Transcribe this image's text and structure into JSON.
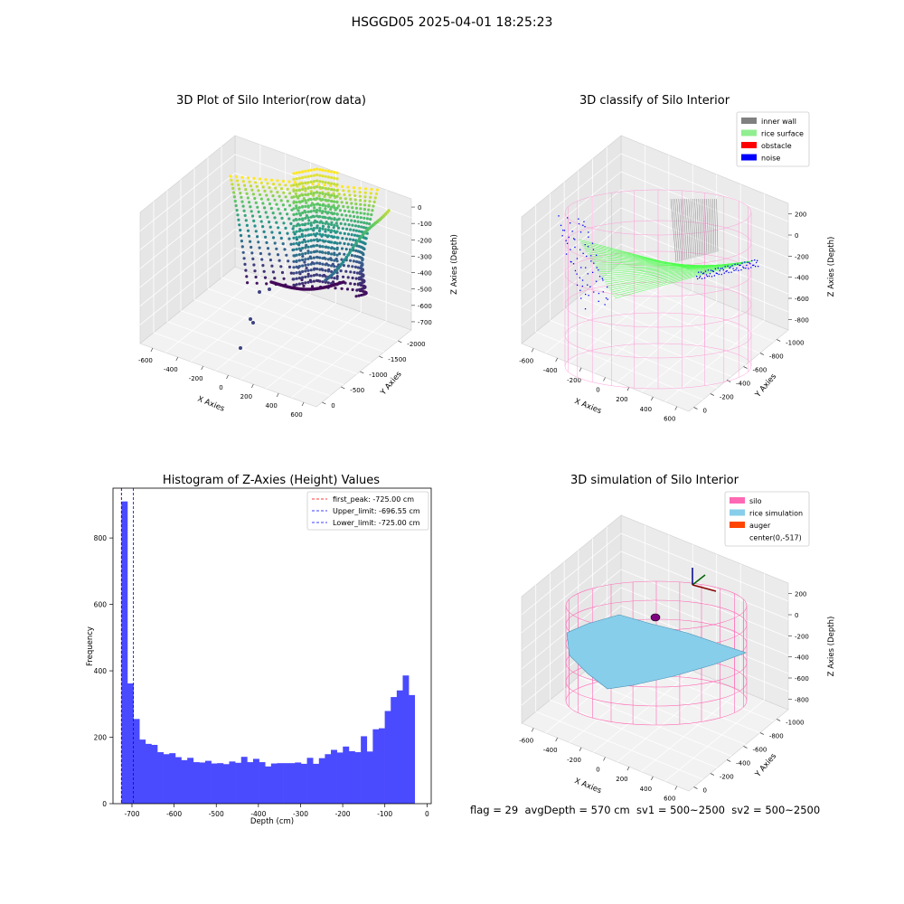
{
  "figure": {
    "suptitle": "HSGGD05 2025-04-01 18:25:23",
    "stats_line": "flag = 29  avgDepth = 570 cm  sv1 = 500~2500  sv2 = 500~2500"
  },
  "chart_data": [
    {
      "type": "scatter3d",
      "title": "3D Plot of Silo Interior(row data)",
      "xlabel": "X Axies",
      "ylabel": "Y Axies",
      "zlabel": "Z Axies (Depth)",
      "x_ticks": [
        -600,
        -400,
        -200,
        0,
        200,
        400,
        600
      ],
      "y_ticks": [
        0,
        -500,
        -1000,
        -1500,
        -2000
      ],
      "z_ticks": [
        0,
        -100,
        -200,
        -300,
        -400,
        -500,
        -600,
        -700
      ],
      "colormap": "viridis",
      "grid": true
    },
    {
      "type": "scatter3d",
      "title": "3D classify of Silo Interior",
      "xlabel": "X Axies",
      "ylabel": "Y Axies",
      "zlabel": "Z Axies (Depth)",
      "x_ticks": [
        -600,
        -400,
        -200,
        0,
        200,
        400,
        600
      ],
      "y_ticks": [
        0,
        -200,
        -400,
        -600,
        -800,
        -1000
      ],
      "z_ticks": [
        200,
        0,
        -200,
        -400,
        -600,
        -800
      ],
      "legend_position": "top-right",
      "legend": [
        {
          "label": "inner wall",
          "color": "#808080"
        },
        {
          "label": "rice surface",
          "color": "#90ee90"
        },
        {
          "label": "obstacle",
          "color": "#ff0000"
        },
        {
          "label": "noise",
          "color": "#0000ff"
        }
      ],
      "grid": true
    },
    {
      "type": "bar",
      "title": "Histogram of Z-Axies (Height) Values",
      "xlabel": "Depth (cm)",
      "ylabel": "Frequency",
      "xlim": [
        -745,
        10
      ],
      "ylim": [
        0,
        950
      ],
      "x_ticks": [
        -700,
        -600,
        -500,
        -400,
        -300,
        -200,
        -100,
        0
      ],
      "y_ticks": [
        0,
        200,
        400,
        600,
        800
      ],
      "color": "#4a4aff",
      "bin_start": -725,
      "bin_width": 14.2,
      "values": [
        910,
        362,
        255,
        193,
        180,
        177,
        155,
        149,
        152,
        140,
        131,
        138,
        125,
        124,
        129,
        121,
        122,
        119,
        127,
        123,
        141,
        125,
        135,
        125,
        112,
        121,
        122,
        122,
        122,
        124,
        120,
        138,
        120,
        137,
        149,
        162,
        154,
        172,
        158,
        155,
        203,
        157,
        224,
        227,
        279,
        321,
        341,
        386,
        327
      ],
      "reference_lines": [
        {
          "label": "first_peak: -725.00 cm",
          "value": -725,
          "color": "#ff0000"
        },
        {
          "label": "Upper_limit: -696.55 cm",
          "value": -696.55,
          "color": "#0000ff"
        },
        {
          "label": "Lower_limit: -725.00 cm",
          "value": -725,
          "color": "#0000ff"
        }
      ],
      "legend_position": "top-right"
    },
    {
      "type": "surface3d",
      "title": "3D simulation of Silo Interior",
      "xlabel": "X Axies",
      "ylabel": "Y Axies",
      "zlabel": "Z Axies (Depth)",
      "x_ticks": [
        -600,
        -400,
        -200,
        0,
        200,
        400,
        600
      ],
      "y_ticks": [
        0,
        -200,
        -400,
        -600,
        -800,
        -1000
      ],
      "z_ticks": [
        200,
        0,
        -200,
        -400,
        -600,
        -800
      ],
      "legend_position": "top-right",
      "legend": [
        {
          "label": "silo",
          "color": "#ff69b4"
        },
        {
          "label": "rice simulation",
          "color": "#87ceeb"
        },
        {
          "label": "auger",
          "color": "#ff4500"
        },
        {
          "label": "center(0,-517)",
          "color": ""
        }
      ],
      "grid": true
    }
  ]
}
